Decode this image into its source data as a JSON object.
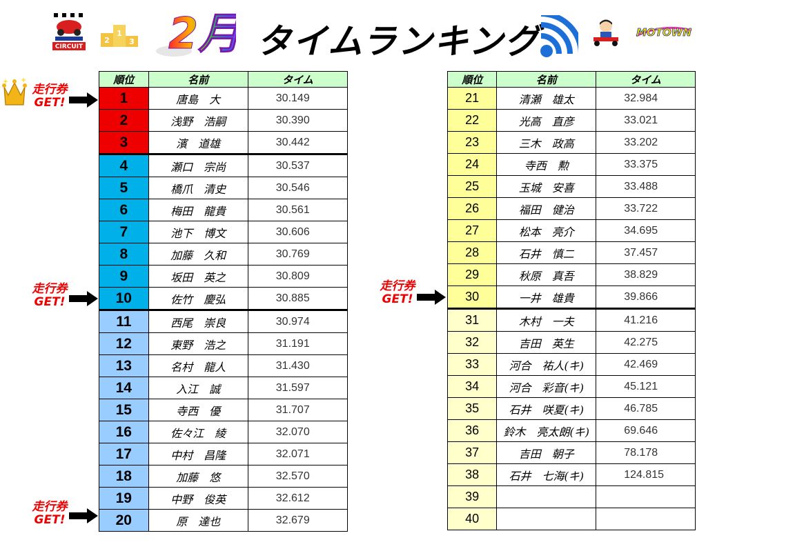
{
  "header": {
    "month": "2月",
    "title": "タイムランキング",
    "circuit_logo_text": "CIRCUIT",
    "motown_logo_text": "MOTOWN"
  },
  "table_headers": {
    "rank": "順位",
    "name": "名前",
    "time": "タイム"
  },
  "ticket_label_line1": "走行券",
  "ticket_label_line2": "GET!",
  "left_rows": [
    {
      "rank": "1",
      "name": "唐島　大",
      "time": "30.149"
    },
    {
      "rank": "2",
      "name": "浅野　浩嗣",
      "time": "30.390"
    },
    {
      "rank": "3",
      "name": "濱　道雄",
      "time": "30.442"
    },
    {
      "rank": "4",
      "name": "瀬口　宗尚",
      "time": "30.537"
    },
    {
      "rank": "5",
      "name": "橋爪　清史",
      "time": "30.546"
    },
    {
      "rank": "6",
      "name": "梅田　龍貴",
      "time": "30.561"
    },
    {
      "rank": "7",
      "name": "池下　博文",
      "time": "30.606"
    },
    {
      "rank": "8",
      "name": "加藤　久和",
      "time": "30.769"
    },
    {
      "rank": "9",
      "name": "坂田　英之",
      "time": "30.809"
    },
    {
      "rank": "10",
      "name": "佐竹　慶弘",
      "time": "30.885"
    },
    {
      "rank": "11",
      "name": "西尾　崇良",
      "time": "30.974"
    },
    {
      "rank": "12",
      "name": "東野　浩之",
      "time": "31.191"
    },
    {
      "rank": "13",
      "name": "名村　龍人",
      "time": "31.430"
    },
    {
      "rank": "14",
      "name": "入江　誠",
      "time": "31.597"
    },
    {
      "rank": "15",
      "name": "寺西　優",
      "time": "31.707"
    },
    {
      "rank": "16",
      "name": "佐々江　綾",
      "time": "32.070"
    },
    {
      "rank": "17",
      "name": "中村　昌隆",
      "time": "32.071"
    },
    {
      "rank": "18",
      "name": "加藤　悠",
      "time": "32.570"
    },
    {
      "rank": "19",
      "name": "中野　俊英",
      "time": "32.612"
    },
    {
      "rank": "20",
      "name": "原　達也",
      "time": "32.679"
    }
  ],
  "right_rows": [
    {
      "rank": "21",
      "name": "清瀬　雄太",
      "time": "32.984"
    },
    {
      "rank": "22",
      "name": "光高　直彦",
      "time": "33.021"
    },
    {
      "rank": "23",
      "name": "三木　政高",
      "time": "33.202"
    },
    {
      "rank": "24",
      "name": "寺西　勲",
      "time": "33.375"
    },
    {
      "rank": "25",
      "name": "玉城　安喜",
      "time": "33.488"
    },
    {
      "rank": "26",
      "name": "福田　健治",
      "time": "33.722"
    },
    {
      "rank": "27",
      "name": "松本　亮介",
      "time": "34.695"
    },
    {
      "rank": "28",
      "name": "石井　慎二",
      "time": "37.457"
    },
    {
      "rank": "29",
      "name": "秋原　真吾",
      "time": "38.829"
    },
    {
      "rank": "30",
      "name": "一井　雄貴",
      "time": "39.866"
    },
    {
      "rank": "31",
      "name": "木村　一夫",
      "time": "41.216"
    },
    {
      "rank": "32",
      "name": "吉田　英生",
      "time": "42.275"
    },
    {
      "rank": "33",
      "name": "河合　祐人(キ)",
      "time": "42.469"
    },
    {
      "rank": "34",
      "name": "河合　彩音(キ)",
      "time": "45.121"
    },
    {
      "rank": "35",
      "name": "石井　咲夏(キ)",
      "time": "46.785"
    },
    {
      "rank": "36",
      "name": "鈴木　亮太朗(キ)",
      "time": "69.646"
    },
    {
      "rank": "37",
      "name": "吉田　朝子",
      "time": "78.178"
    },
    {
      "rank": "38",
      "name": "石井　七海(キ)",
      "time": "124.815"
    },
    {
      "rank": "39",
      "name": "",
      "time": ""
    },
    {
      "rank": "40",
      "name": "",
      "time": ""
    }
  ],
  "colors": {
    "header_bg": "#ccffcc",
    "top3": "#ee0000",
    "rank4_10": "#00b0e8",
    "rank11_20": "#99ccff",
    "rank21_30": "#ffff99",
    "rank31_40": "#ffffcc",
    "ticket_text": "#ee0000"
  },
  "icons": [
    "circuit-logo-icon",
    "podium-icon",
    "crown-icon",
    "wifi-icon",
    "kart-driver-icon",
    "motown-logo-icon",
    "arrow-right-icon"
  ]
}
